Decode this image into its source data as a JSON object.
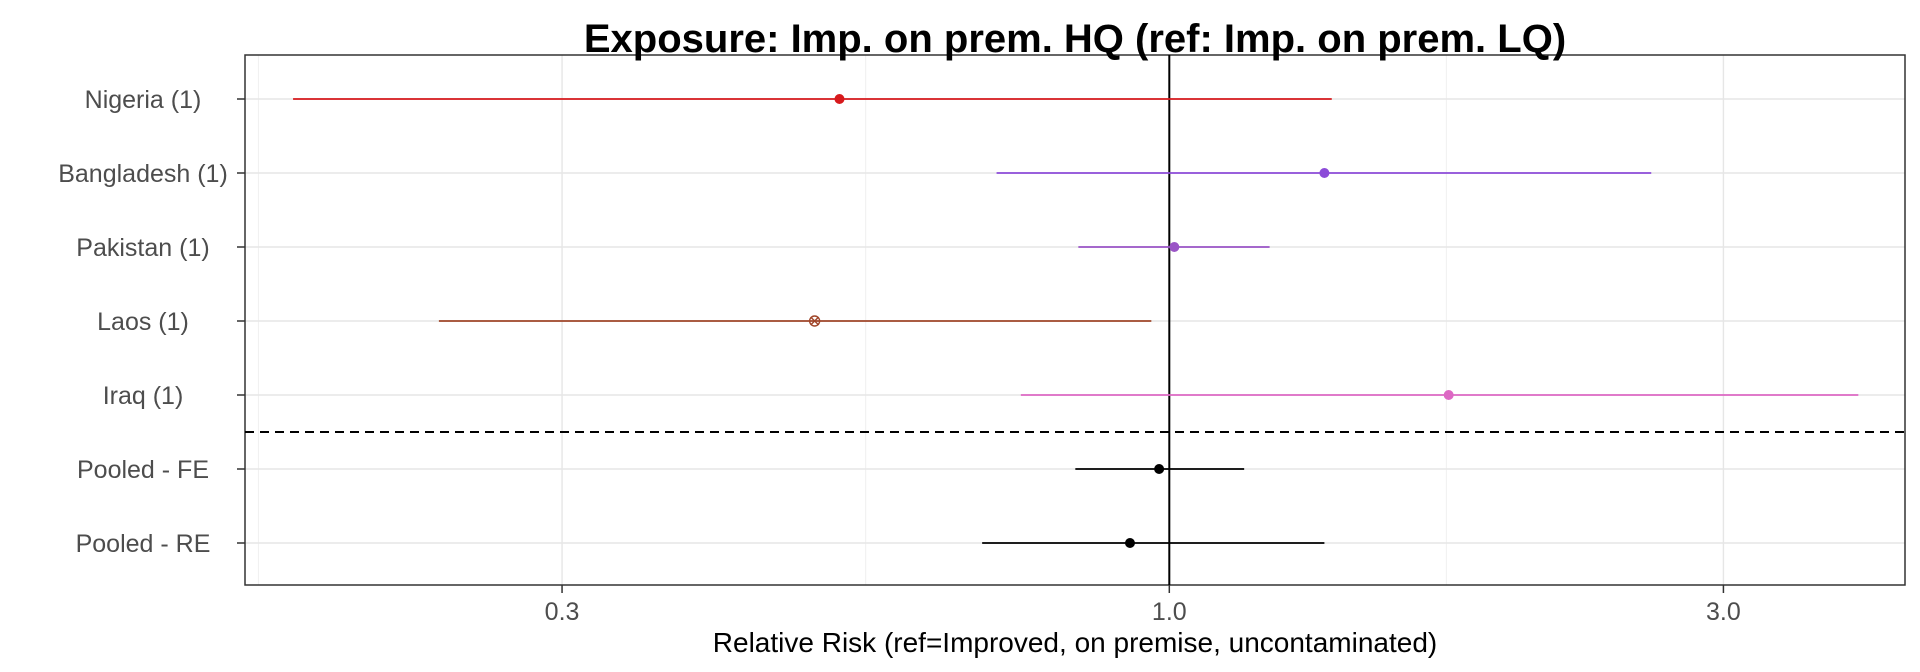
{
  "chart_data": {
    "type": "forest",
    "title": "Exposure: Imp. on prem. HQ (ref: Imp. on prem. LQ)",
    "xlabel": "Relative Risk (ref=Improved, on premise, uncontaminated)",
    "ylabel": "",
    "x_scale": "log",
    "xlim": [
      0.16,
      4.3
    ],
    "x_ticks": [
      0.3,
      1.0,
      3.0
    ],
    "x_tick_labels": [
      "0.3",
      "1.0",
      "3.0"
    ],
    "reference_line": 1.0,
    "grid": true,
    "rows": [
      {
        "label": "Nigeria (1)",
        "estimate": 0.52,
        "lower": 0.176,
        "upper": 1.38,
        "color": "#d7191c",
        "marker": "circle"
      },
      {
        "label": "Bangladesh (1)",
        "estimate": 1.36,
        "lower": 0.71,
        "upper": 2.6,
        "color": "#8c4bd8",
        "marker": "circle"
      },
      {
        "label": "Pakistan (1)",
        "estimate": 1.01,
        "lower": 0.835,
        "upper": 1.22,
        "color": "#9a55c6",
        "marker": "circle"
      },
      {
        "label": "Laos (1)",
        "estimate": 0.495,
        "lower": 0.235,
        "upper": 0.965,
        "color": "#a0462a",
        "marker": "x-circle"
      },
      {
        "label": "Iraq (1)",
        "estimate": 1.74,
        "lower": 0.745,
        "upper": 3.92,
        "color": "#dd68c4",
        "marker": "circle"
      },
      {
        "label": "Pooled - FE",
        "estimate": 0.98,
        "lower": 0.83,
        "upper": 1.16,
        "color": "#000000",
        "marker": "circle"
      },
      {
        "label": "Pooled - RE",
        "estimate": 0.925,
        "lower": 0.69,
        "upper": 1.36,
        "color": "#000000",
        "marker": "circle"
      }
    ],
    "separator_after_row": 5
  }
}
